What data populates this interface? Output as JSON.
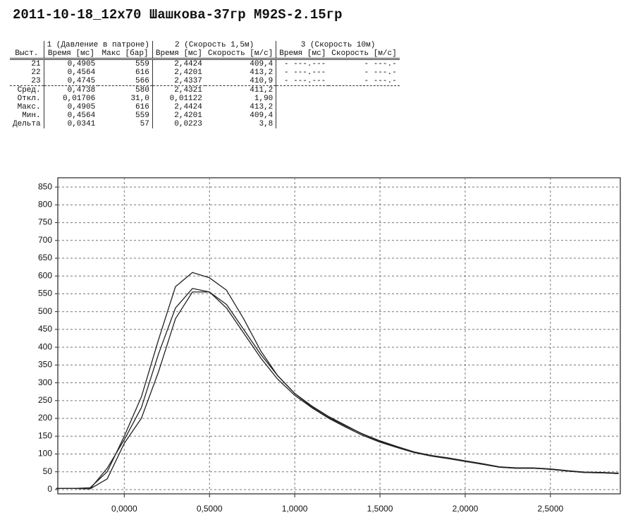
{
  "header": {
    "title": "2011-10-18_12x70 Шашкова-37гр М92S-2.15гр"
  },
  "table": {
    "groups": [
      "1 (Давление в патроне)",
      "2 (Скорость 1,5м)",
      "3 (Скорость 10м)"
    ],
    "columns": [
      "Выст.",
      "Время [мс]",
      "Макс [бар]",
      "Время [мс]",
      "Скорость [м/с]",
      "Время [мс]",
      "Скорость [м/с]"
    ],
    "rows": [
      [
        "21",
        "0,4905",
        "559",
        "2,4424",
        "409,4",
        "- ---.---",
        "- ---.-"
      ],
      [
        "22",
        "0,4564",
        "616",
        "2,4201",
        "413,2",
        "- ---.---",
        "- ---.-"
      ],
      [
        "23",
        "0,4745",
        "566",
        "2,4337",
        "410,9",
        "- ---.---",
        "- ---.-"
      ]
    ],
    "stats": [
      [
        "Сред.",
        "0,4738",
        "580",
        "2,4321",
        "411,2"
      ],
      [
        "Откл.",
        "0,01706",
        "31,0",
        "0,01122",
        "1,90"
      ],
      [
        "Макс.",
        "0,4905",
        "616",
        "2,4424",
        "413,2"
      ],
      [
        "Мин.",
        "0,4564",
        "559",
        "2,4201",
        "409,4"
      ],
      [
        "Дельта",
        "0,0341",
        "57",
        "0,0223",
        "3,8"
      ]
    ]
  },
  "chart_data": {
    "type": "line",
    "x": [
      -0.4,
      -0.3,
      -0.2,
      -0.1,
      0,
      0.1,
      0.2,
      0.3,
      0.4,
      0.5,
      0.6,
      0.7,
      0.8,
      0.9,
      1.0,
      1.1,
      1.2,
      1.3,
      1.4,
      1.5,
      1.6,
      1.7,
      1.8,
      1.9,
      2.0,
      2.1,
      2.2,
      2.3,
      2.4,
      2.5,
      2.6,
      2.7,
      2.8,
      2.9
    ],
    "series": [
      {
        "color": "#222222",
        "values": [
          3,
          3,
          5,
          50,
          150,
          260,
          420,
          570,
          610,
          595,
          560,
          480,
          390,
          320,
          270,
          235,
          205,
          180,
          155,
          135,
          120,
          105,
          95,
          88,
          80,
          72,
          63,
          60,
          60,
          57,
          52,
          48,
          47,
          45
        ]
      },
      {
        "color": "#222222",
        "values": [
          3,
          3,
          2,
          60,
          140,
          230,
          380,
          510,
          565,
          555,
          510,
          440,
          370,
          310,
          265,
          230,
          200,
          175,
          152,
          133,
          118,
          104,
          94,
          87,
          79,
          71,
          63,
          60,
          60,
          57,
          52,
          48,
          47,
          45
        ]
      },
      {
        "color": "#222222",
        "values": [
          3,
          3,
          2,
          30,
          130,
          200,
          330,
          480,
          555,
          555,
          520,
          450,
          380,
          320,
          270,
          232,
          202,
          178,
          156,
          137,
          121,
          106,
          96,
          89,
          81,
          73,
          64,
          61,
          61,
          58,
          53,
          49,
          48,
          46
        ]
      }
    ],
    "xlim": [
      -0.39,
      2.91
    ],
    "ylim": [
      -12,
      876
    ],
    "xticks": [
      {
        "value": 0,
        "label": "0,0000"
      },
      {
        "value": 0.5,
        "label": "0,5000"
      },
      {
        "value": 1,
        "label": "1,0000"
      },
      {
        "value": 1.5,
        "label": "1,5000"
      },
      {
        "value": 2,
        "label": "2,0000"
      },
      {
        "value": 2.5,
        "label": "2,5000"
      }
    ],
    "yticks": [
      0,
      50,
      100,
      150,
      200,
      250,
      300,
      350,
      400,
      450,
      500,
      550,
      600,
      650,
      700,
      750,
      800,
      850
    ],
    "grid": true
  }
}
